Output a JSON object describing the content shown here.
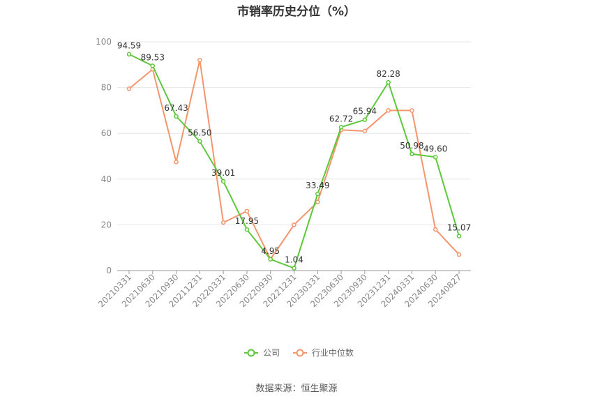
{
  "chart_data": {
    "type": "line",
    "title": "市销率历史分位（%）",
    "xlabel": "",
    "ylabel": "",
    "ylim": [
      0,
      100
    ],
    "yticks": [
      0,
      20,
      40,
      60,
      80,
      100
    ],
    "grid": true,
    "legend_position": "bottom",
    "categories": [
      "20210331",
      "20210630",
      "20210930",
      "20211231",
      "20220331",
      "20220630",
      "20220930",
      "20221231",
      "20230331",
      "20230630",
      "20230930",
      "20231231",
      "20240331",
      "20240630",
      "20240827"
    ],
    "series": [
      {
        "name": "公司",
        "color": "#5cc83a",
        "values": [
          94.59,
          89.53,
          67.43,
          56.5,
          39.01,
          17.95,
          4.95,
          1.04,
          33.49,
          62.72,
          65.94,
          82.28,
          50.98,
          49.6,
          15.07
        ],
        "labels": [
          "94.59",
          "89.53",
          "67.43",
          "56.50",
          "39.01",
          "17.95",
          "4.95",
          "1.04",
          "33.49",
          "62.72",
          "65.94",
          "82.28",
          "50.98",
          "49.60",
          "15.07"
        ]
      },
      {
        "name": "行业中位数",
        "color": "#f4956c",
        "values": [
          79.5,
          88.0,
          47.5,
          92.0,
          21.0,
          26.0,
          5.0,
          20.0,
          30.0,
          61.5,
          61.0,
          70.0,
          70.0,
          18.0,
          7.0
        ]
      }
    ]
  },
  "source": "数据来源：恒生聚源"
}
